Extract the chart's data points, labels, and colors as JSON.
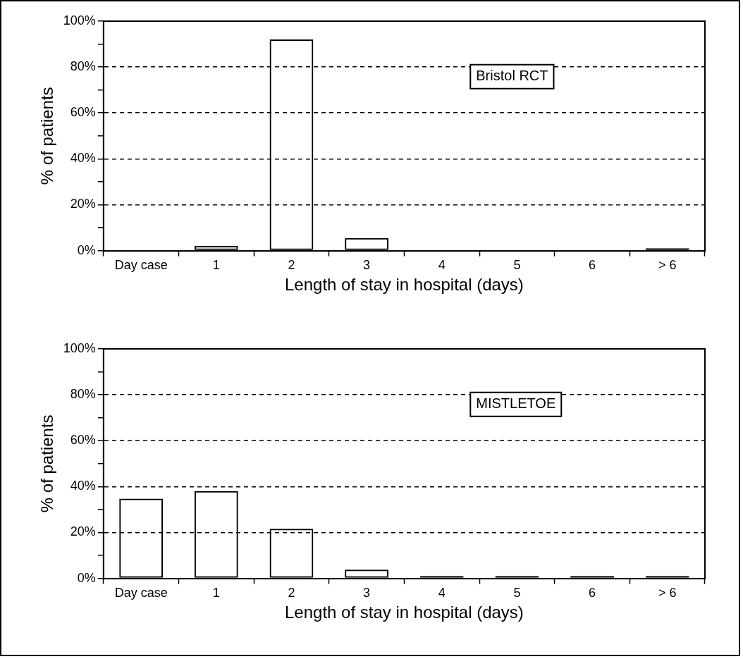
{
  "chart_data": [
    {
      "type": "bar",
      "categories": [
        "Day case",
        "1",
        "2",
        "3",
        "4",
        "5",
        "6",
        "> 6"
      ],
      "values": [
        0,
        2,
        92,
        5.5,
        0,
        0,
        0,
        1
      ],
      "color": "#000000",
      "xlabel": "Length of stay in hospital (days)",
      "ylabel": "% of patients",
      "ylim": [
        0,
        100
      ],
      "yticks": [
        {
          "value": 0,
          "label": "0%"
        },
        {
          "value": 10,
          "label": null
        },
        {
          "value": 20,
          "label": "20%"
        },
        {
          "value": 30,
          "label": null
        },
        {
          "value": 40,
          "label": "40%"
        },
        {
          "value": 50,
          "label": null
        },
        {
          "value": 60,
          "label": "60%"
        },
        {
          "value": 70,
          "label": null
        },
        {
          "value": 80,
          "label": "80%"
        },
        {
          "value": 90,
          "label": null
        },
        {
          "value": 100,
          "label": "100%"
        }
      ],
      "grid": "y",
      "annotations": [
        "Bristol RCT"
      ]
    },
    {
      "type": "bar",
      "categories": [
        "Day case",
        "1",
        "2",
        "3",
        "4",
        "5",
        "6",
        "> 6"
      ],
      "values": [
        34.7,
        38,
        21.6,
        3.8,
        1,
        1,
        1,
        1
      ],
      "color": "#000000",
      "xlabel": "Length of stay in hospital (days)",
      "ylabel": "% of patients",
      "ylim": [
        0,
        100
      ],
      "yticks": [
        {
          "value": 0,
          "label": "0%"
        },
        {
          "value": 10,
          "label": null
        },
        {
          "value": 20,
          "label": "20%"
        },
        {
          "value": 30,
          "label": null
        },
        {
          "value": 40,
          "label": "40%"
        },
        {
          "value": 50,
          "label": null
        },
        {
          "value": 60,
          "label": "60%"
        },
        {
          "value": 70,
          "label": null
        },
        {
          "value": 80,
          "label": "80%"
        },
        {
          "value": 90,
          "label": null
        },
        {
          "value": 100,
          "label": "100%"
        }
      ],
      "grid": "y",
      "annotations": [
        "MISTLETOE"
      ]
    }
  ]
}
